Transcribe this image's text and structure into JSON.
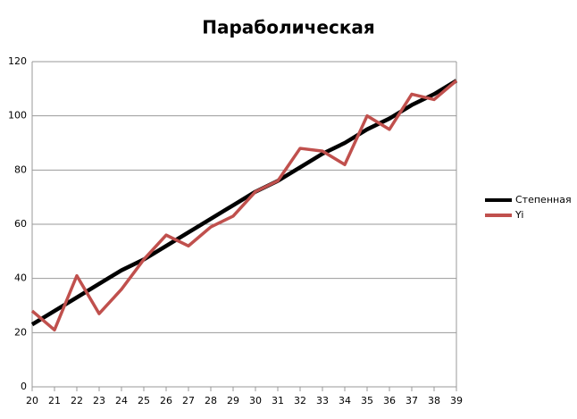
{
  "chart_data": {
    "type": "line",
    "title": "Параболическая",
    "x": [
      20,
      21,
      22,
      23,
      24,
      25,
      26,
      27,
      28,
      29,
      30,
      31,
      32,
      33,
      34,
      35,
      36,
      37,
      38,
      39
    ],
    "series": [
      {
        "name": "Степенная",
        "color": "#000000",
        "values": [
          23,
          28,
          33,
          38,
          43,
          47,
          52,
          57,
          62,
          67,
          72,
          76,
          81,
          86,
          90,
          95,
          99,
          104,
          108,
          113
        ]
      },
      {
        "name": "Yi",
        "color": "#c0504d",
        "values": [
          28,
          21,
          41,
          27,
          36,
          47,
          56,
          52,
          59,
          63,
          72,
          76,
          88,
          87,
          82,
          100,
          95,
          108,
          106,
          113
        ]
      }
    ],
    "xlim": [
      20,
      39
    ],
    "xticks": [
      20,
      21,
      22,
      23,
      24,
      25,
      26,
      27,
      28,
      29,
      30,
      31,
      32,
      33,
      34,
      35,
      36,
      37,
      38,
      39
    ],
    "ylim": [
      0,
      120
    ],
    "yticks": [
      0,
      20,
      40,
      60,
      80,
      100,
      120
    ],
    "grid": true,
    "legend": "right"
  }
}
